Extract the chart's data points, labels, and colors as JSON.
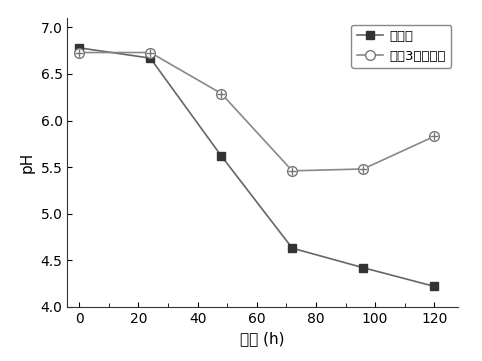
{
  "series1": {
    "label": "不鼓泡",
    "x": [
      0,
      24,
      48,
      72,
      96,
      120
    ],
    "y": [
      6.78,
      6.67,
      5.62,
      4.63,
      4.42,
      4.22
    ],
    "color": "#555555",
    "marker": "s",
    "markersize": 6,
    "linewidth": 1.2
  },
  "series2": {
    "label": "间隔3小时鼓泡",
    "x": [
      0,
      24,
      48,
      72,
      96,
      120
    ],
    "y": [
      6.73,
      6.73,
      6.29,
      5.46,
      5.48,
      5.83
    ],
    "color": "#888888",
    "marker": "o",
    "markersize": 7,
    "linewidth": 1.2
  },
  "xlabel": "时间 (h)",
  "ylabel": "pH",
  "xlim": [
    -4,
    128
  ],
  "ylim": [
    4.0,
    7.1
  ],
  "xticks": [
    0,
    20,
    40,
    60,
    80,
    100,
    120
  ],
  "yticks": [
    4.0,
    4.5,
    5.0,
    5.5,
    6.0,
    6.5,
    7.0
  ],
  "background_color": "#ffffff",
  "legend_loc": "upper right"
}
